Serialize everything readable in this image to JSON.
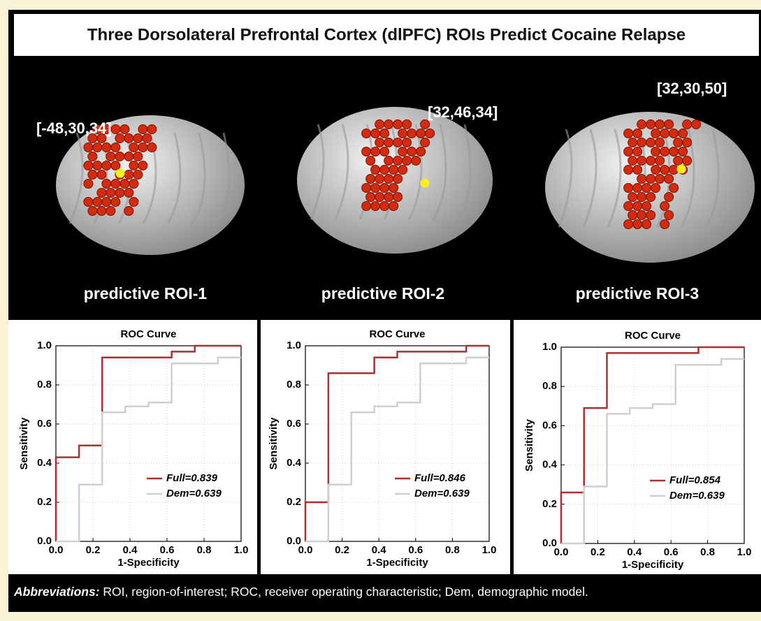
{
  "title": "Three Dorsolateral Prefrontal Cortex (dlPFC) ROIs Predict Cocaine Relapse",
  "panels": [
    {
      "coords": "[-48,30,34]",
      "label": "predictive ROI-1"
    },
    {
      "coords": "[32,46,34]",
      "label": "predictive ROI-2"
    },
    {
      "coords": "[32,30,50]",
      "label": "predictive ROI-3"
    }
  ],
  "footnote": {
    "lead": "Abbreviations:",
    "text": "ROI, region-of-interest; ROC, receiver operating characteristic; Dem, demographic model."
  },
  "chart_data": [
    {
      "type": "line",
      "title": "ROC Curve",
      "x_label": "1-Specificity",
      "y_label": "Sensitivity",
      "xlim": [
        0,
        1
      ],
      "ylim": [
        0,
        1
      ],
      "xticks": [
        {
          "value": 0,
          "label": "0.0"
        },
        0.2,
        0.4,
        0.6,
        0.8,
        {
          "value": 1,
          "label": "1.0"
        }
      ],
      "yticks": [
        {
          "value": 0,
          "label": "0.0"
        },
        0.2,
        0.4,
        0.6,
        0.8,
        {
          "value": 1,
          "label": "1.0"
        }
      ],
      "grid": true,
      "series": [
        {
          "name": "Full=0.839",
          "color": "#a83232",
          "x": [
            0,
            0,
            0.125,
            0.125,
            0.25,
            0.25,
            0.625,
            0.625,
            0.75,
            0.75,
            1
          ],
          "values": [
            0,
            0.43,
            0.43,
            0.49,
            0.49,
            0.94,
            0.94,
            0.97,
            0.97,
            1,
            1
          ]
        },
        {
          "name": "Dem=0.639",
          "color": "#cfcfcf",
          "x": [
            0,
            0.125,
            0.125,
            0.25,
            0.25,
            0.375,
            0.375,
            0.5,
            0.5,
            0.625,
            0.625,
            0.875,
            0.875,
            1
          ],
          "values": [
            0,
            0,
            0.29,
            0.29,
            0.66,
            0.66,
            0.69,
            0.69,
            0.71,
            0.71,
            0.91,
            0.91,
            0.94,
            0.94
          ]
        }
      ]
    },
    {
      "type": "line",
      "title": "ROC Curve",
      "x_label": "1-Specificity",
      "y_label": "Sensitivity",
      "xlim": [
        0,
        1
      ],
      "ylim": [
        0,
        1
      ],
      "xticks": [
        {
          "value": 0,
          "label": "0.0"
        },
        0.2,
        0.4,
        0.6,
        0.8,
        {
          "value": 1,
          "label": "1.0"
        }
      ],
      "yticks": [
        {
          "value": 0,
          "label": "0.0"
        },
        0.2,
        0.4,
        0.6,
        0.8,
        {
          "value": 1,
          "label": "1.0"
        }
      ],
      "grid": true,
      "series": [
        {
          "name": "Full=0.846",
          "color": "#a83232",
          "x": [
            0,
            0,
            0.125,
            0.125,
            0.375,
            0.375,
            0.5,
            0.5,
            0.875,
            0.875,
            1
          ],
          "values": [
            0,
            0.2,
            0.2,
            0.86,
            0.86,
            0.94,
            0.94,
            0.97,
            0.97,
            1,
            1
          ]
        },
        {
          "name": "Dem=0.639",
          "color": "#cfcfcf",
          "x": [
            0,
            0.125,
            0.125,
            0.25,
            0.25,
            0.375,
            0.375,
            0.5,
            0.5,
            0.625,
            0.625,
            0.875,
            0.875,
            1
          ],
          "values": [
            0,
            0,
            0.29,
            0.29,
            0.66,
            0.66,
            0.69,
            0.69,
            0.71,
            0.71,
            0.91,
            0.91,
            0.94,
            0.94
          ]
        }
      ]
    },
    {
      "type": "line",
      "title": "ROC Curve",
      "x_label": "1-Specificity",
      "y_label": "Sensitivity",
      "xlim": [
        0,
        1
      ],
      "ylim": [
        0,
        1
      ],
      "xticks": [
        {
          "value": 0,
          "label": "0.0"
        },
        0.2,
        0.4,
        0.6,
        0.8,
        {
          "value": 1,
          "label": "1.0"
        }
      ],
      "yticks": [
        {
          "value": 0,
          "label": "0.0"
        },
        0.2,
        0.4,
        0.6,
        0.8,
        {
          "value": 1,
          "label": "1.0"
        }
      ],
      "grid": true,
      "series": [
        {
          "name": "Full=0.854",
          "color": "#a83232",
          "x": [
            0,
            0,
            0.125,
            0.125,
            0.25,
            0.25,
            0.75,
            0.75,
            1
          ],
          "values": [
            0,
            0.26,
            0.26,
            0.69,
            0.69,
            0.97,
            0.97,
            1,
            1
          ]
        },
        {
          "name": "Dem=0.639",
          "color": "#cfcfcf",
          "x": [
            0,
            0.125,
            0.125,
            0.25,
            0.25,
            0.375,
            0.375,
            0.5,
            0.5,
            0.625,
            0.625,
            0.875,
            0.875,
            1
          ],
          "values": [
            0,
            0,
            0.29,
            0.29,
            0.66,
            0.66,
            0.69,
            0.69,
            0.71,
            0.71,
            0.91,
            0.91,
            0.94,
            0.94
          ]
        }
      ]
    }
  ]
}
